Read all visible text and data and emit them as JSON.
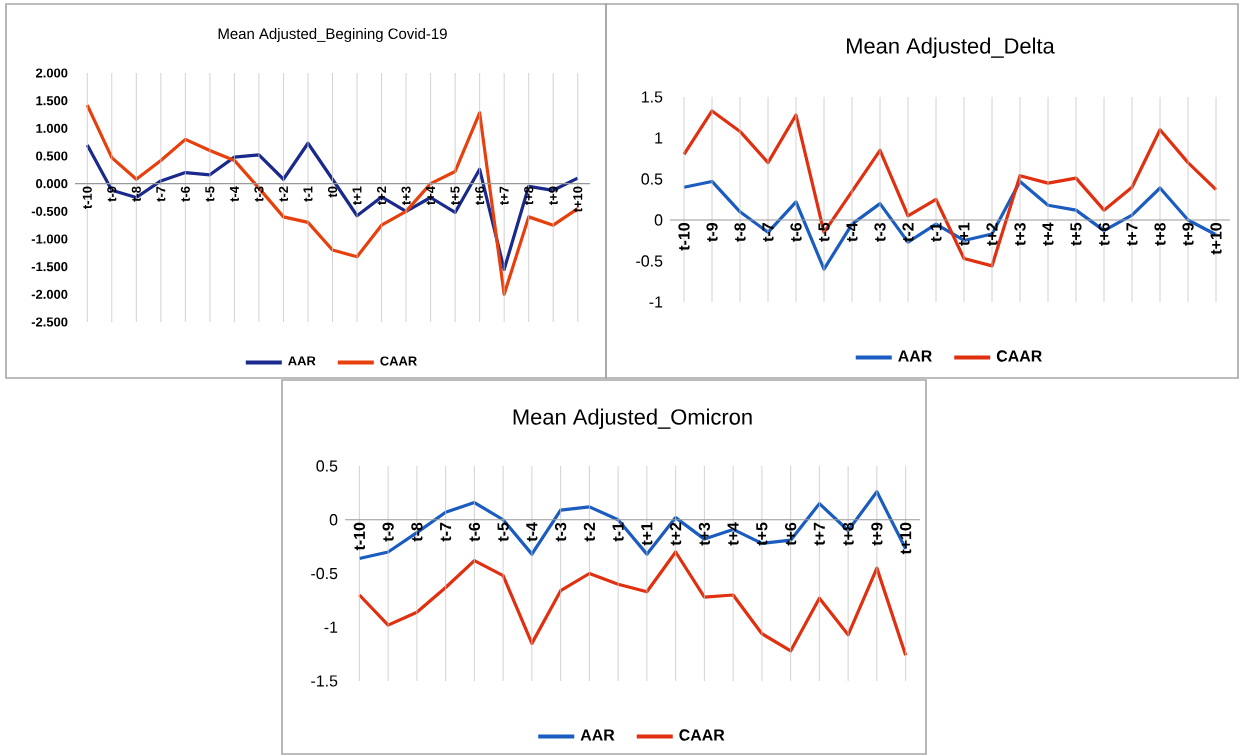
{
  "chart_data": [
    {
      "type": "line",
      "title": "Mean Adjusted_Begining  Covid-19",
      "categories": [
        "t-10",
        "t-9",
        "t-8",
        "t-7",
        "t-6",
        "t-5",
        "t-4",
        "t-3",
        "t-2",
        "t-1",
        "t0",
        "t+1",
        "t+2",
        "t+3",
        "t+4",
        "t+5",
        "t+6",
        "t+7",
        "t+8",
        "t+9",
        "t+10"
      ],
      "series": [
        {
          "name": "AAR",
          "color": "#1a2a8c",
          "values": [
            0.7,
            -0.12,
            -0.25,
            0.05,
            0.2,
            0.16,
            0.48,
            0.52,
            0.08,
            0.73,
            0.08,
            -0.58,
            -0.24,
            -0.5,
            -0.25,
            -0.52,
            0.26,
            -1.55,
            -0.05,
            -0.12,
            0.1
          ]
        },
        {
          "name": "CAAR",
          "color": "#e8400c",
          "values": [
            1.42,
            0.47,
            0.08,
            0.42,
            0.8,
            0.6,
            0.42,
            -0.08,
            -0.6,
            -0.7,
            -1.2,
            -1.32,
            -0.75,
            -0.5,
            0.0,
            0.22,
            1.28,
            -2.0,
            -0.6,
            -0.75,
            -0.45
          ]
        }
      ],
      "ylim": [
        -2.5,
        2.0
      ],
      "yticks": [
        {
          "value": -2.5,
          "label": "-2.500"
        },
        {
          "value": -2,
          "label": "-2.000"
        },
        {
          "value": -1.5,
          "label": "-1.500"
        },
        {
          "value": -1,
          "label": "-1.000"
        },
        {
          "value": -0.5,
          "label": "-0.500"
        },
        {
          "value": 0,
          "label": "0.000"
        },
        {
          "value": 0.5,
          "label": "0.500"
        },
        {
          "value": 1,
          "label": "1.000"
        },
        {
          "value": 1.5,
          "label": "1.500"
        },
        {
          "value": 2,
          "label": "2.000"
        }
      ],
      "grid": "x",
      "legend": "bottom"
    },
    {
      "type": "line",
      "title": "Mean Adjusted_Delta",
      "categories": [
        "t-10",
        "t-9",
        "t-8",
        "t-7",
        "t-6",
        "t-5",
        "t-4",
        "t-3",
        "t-2",
        "t-1",
        "t+1",
        "t+2",
        "t+3",
        "t+4",
        "t+5",
        "t+6",
        "t+7",
        "t+8",
        "t+9",
        "t+10"
      ],
      "series": [
        {
          "name": "AAR",
          "color": "#1a5cbf",
          "values": [
            0.4,
            0.47,
            0.1,
            -0.15,
            0.22,
            -0.6,
            -0.05,
            0.2,
            -0.27,
            -0.05,
            -0.25,
            -0.17,
            0.47,
            0.18,
            0.12,
            -0.13,
            0.06,
            0.39,
            0.0,
            -0.18
          ]
        },
        {
          "name": "CAAR",
          "color": "#e03010",
          "values": [
            0.8,
            1.33,
            1.08,
            0.7,
            1.28,
            -0.15,
            0.35,
            0.85,
            0.05,
            0.25,
            -0.47,
            -0.56,
            0.54,
            0.45,
            0.51,
            0.12,
            0.4,
            1.1,
            0.7,
            0.37
          ]
        }
      ],
      "ylim": [
        -1,
        1.5
      ],
      "yticks": [
        -1,
        -0.5,
        0,
        0.5,
        1,
        1.5
      ],
      "grid": "x",
      "legend": "bottom"
    },
    {
      "type": "line",
      "title": "Mean Adjusted_Omicron",
      "categories": [
        "t-10",
        "t-9",
        "t-8",
        "t-7",
        "t-6",
        "t-5",
        "t-4",
        "t-3",
        "t-2",
        "t-1",
        "t+1",
        "t+2",
        "t+3",
        "t+4",
        "t+5",
        "t+6",
        "t+7",
        "t+8",
        "t+9",
        "t+10"
      ],
      "series": [
        {
          "name": "AAR",
          "color": "#1a5cbf",
          "values": [
            -0.36,
            -0.3,
            -0.12,
            0.07,
            0.16,
            0.0,
            -0.32,
            0.09,
            0.12,
            0.0,
            -0.32,
            0.02,
            -0.18,
            -0.09,
            -0.22,
            -0.19,
            0.15,
            -0.1,
            0.26,
            -0.27
          ]
        },
        {
          "name": "CAAR",
          "color": "#e03010",
          "values": [
            -0.7,
            -0.98,
            -0.86,
            -0.63,
            -0.38,
            -0.52,
            -1.15,
            -0.66,
            -0.5,
            -0.6,
            -0.67,
            -0.3,
            -0.72,
            -0.7,
            -1.06,
            -1.22,
            -0.73,
            -1.07,
            -0.45,
            -1.26
          ]
        }
      ],
      "ylim": [
        -1.5,
        0.5
      ],
      "yticks": [
        -1.5,
        -1,
        -0.5,
        0,
        0.5
      ],
      "grid": "x",
      "legend": "bottom"
    }
  ]
}
